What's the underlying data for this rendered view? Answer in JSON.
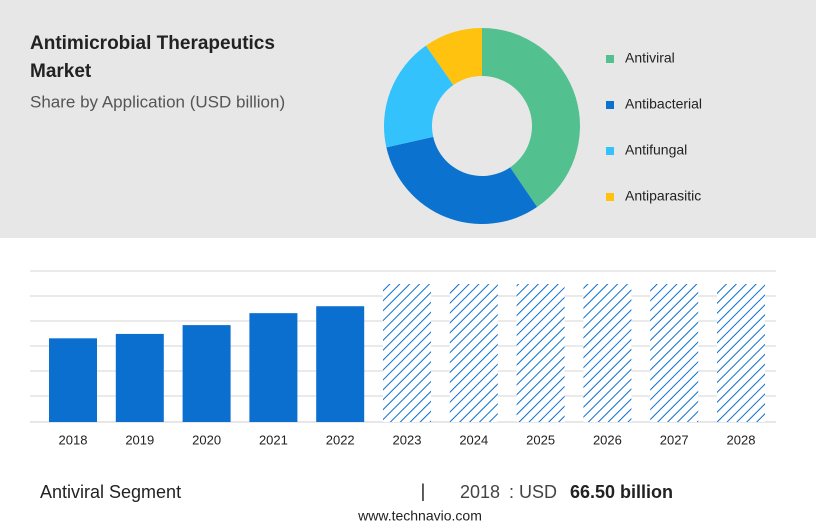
{
  "header": {
    "title_line1": "Antimicrobial Therapeutics",
    "title_line2": "Market",
    "subtitle": "Share by Application (USD billion)"
  },
  "chart_data": [
    {
      "type": "donut",
      "categories": [
        "Antiviral",
        "Antibacterial",
        "Antifungal",
        "Antiparasitic"
      ],
      "values": [
        40.5,
        31,
        18.8,
        9.7
      ],
      "colors": [
        "#52c08f",
        "#0b72d0",
        "#33c2fb",
        "#ffc20e"
      ]
    },
    {
      "type": "bar",
      "categories": [
        "2018",
        "2019",
        "2020",
        "2021",
        "2022",
        "2023",
        "2024",
        "2025",
        "2026",
        "2027",
        "2028"
      ],
      "values": [
        66.5,
        70,
        77,
        86.5,
        92,
        null,
        null,
        null,
        null,
        null,
        null
      ],
      "color": "#0b6fd0",
      "ylim": [
        0,
        120
      ],
      "grid": true
    }
  ],
  "footer": {
    "segment": "Antiviral Segment",
    "separator": "|",
    "year": "2018",
    "colon_currency": ": USD",
    "value": "66.50 billion",
    "site": "www.technavio.com"
  }
}
